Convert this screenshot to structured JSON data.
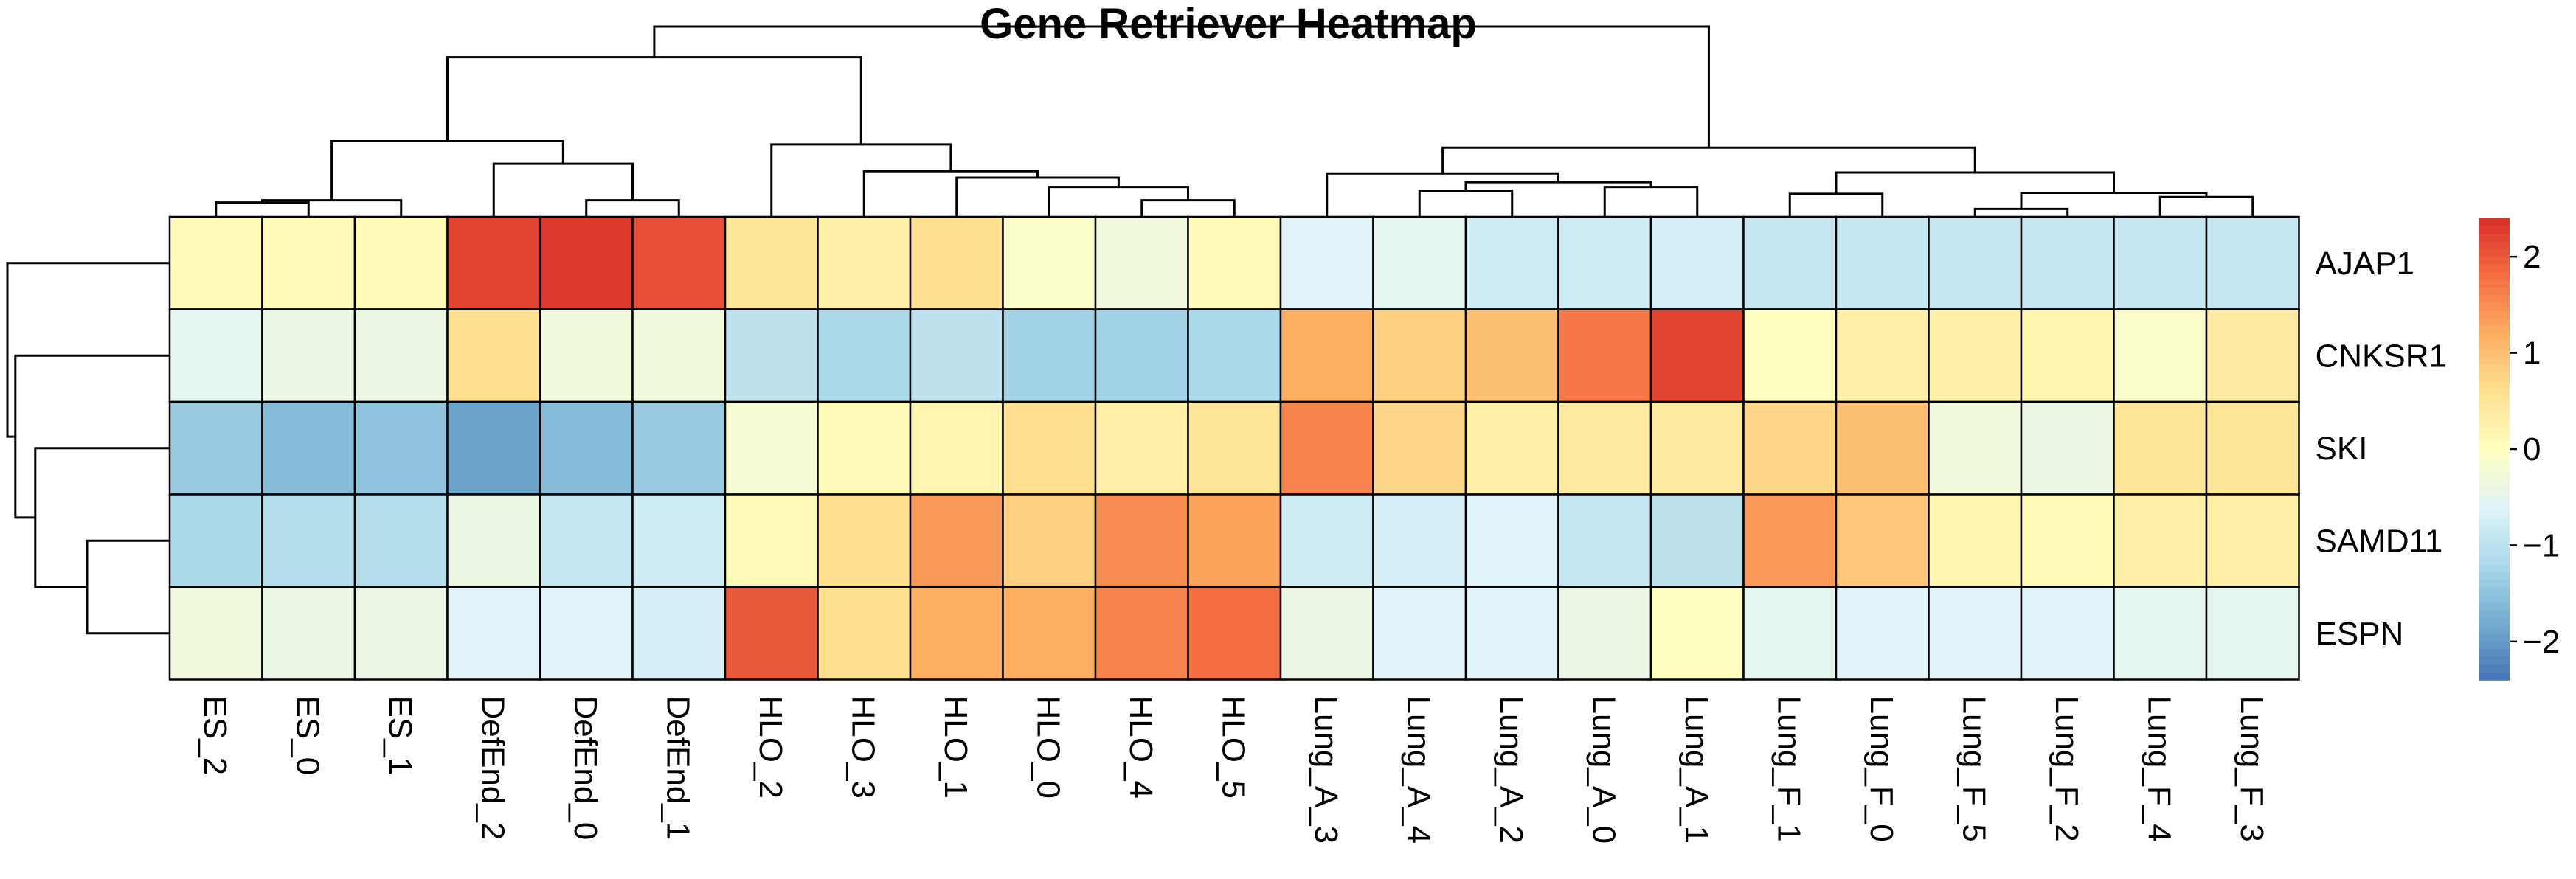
{
  "chart_data": {
    "type": "heatmap",
    "title": "Gene Retriever Heatmap",
    "rows": [
      "AJAP1",
      "CNKSR1",
      "SKI",
      "SAMD11",
      "ESPN"
    ],
    "columns": [
      "ES_2",
      "ES_0",
      "ES_1",
      "DefEnd_2",
      "DefEnd_0",
      "DefEnd_1",
      "HLO_2",
      "HLO_3",
      "HLO_1",
      "HLO_0",
      "HLO_4",
      "HLO_5",
      "Lung_A_3",
      "Lung_A_4",
      "Lung_A_2",
      "Lung_A_0",
      "Lung_A_1",
      "Lung_F_1",
      "Lung_F_0",
      "Lung_F_5",
      "Lung_F_2",
      "Lung_F_4",
      "Lung_F_3"
    ],
    "values": [
      [
        0.1,
        0.1,
        0.1,
        2.2,
        2.3,
        2.1,
        0.5,
        0.3,
        0.6,
        -0.1,
        -0.3,
        0.1,
        -0.6,
        -0.5,
        -0.8,
        -0.8,
        -0.7,
        -0.9,
        -0.9,
        -0.9,
        -0.9,
        -0.9,
        -0.9
      ],
      [
        -0.5,
        -0.4,
        -0.4,
        0.6,
        -0.3,
        -0.3,
        -1.0,
        -1.2,
        -1.0,
        -1.3,
        -1.3,
        -1.2,
        1.2,
        0.8,
        1.0,
        1.7,
        2.2,
        0.0,
        0.3,
        0.3,
        0.2,
        -0.1,
        0.4
      ],
      [
        -1.4,
        -1.6,
        -1.5,
        -1.9,
        -1.6,
        -1.4,
        -0.2,
        0.1,
        0.2,
        0.6,
        0.3,
        0.5,
        1.6,
        0.7,
        0.3,
        0.4,
        0.4,
        0.7,
        1.0,
        -0.3,
        -0.4,
        0.5,
        0.5
      ],
      [
        -1.2,
        -1.1,
        -1.1,
        -0.4,
        -0.9,
        -0.8,
        0.1,
        0.6,
        1.4,
        0.8,
        1.5,
        1.3,
        -0.8,
        -0.7,
        -0.6,
        -0.9,
        -1.0,
        1.4,
        0.9,
        0.2,
        0.1,
        0.3,
        0.3
      ],
      [
        -0.3,
        -0.4,
        -0.4,
        -0.6,
        -0.6,
        -0.7,
        2.0,
        0.6,
        1.2,
        1.2,
        1.6,
        1.8,
        -0.4,
        -0.6,
        -0.6,
        -0.4,
        0.0,
        -0.5,
        -0.6,
        -0.6,
        -0.6,
        -0.5,
        -0.5
      ]
    ],
    "color_scale": {
      "min": -2.4,
      "max": 2.4,
      "stops": [
        "#4575b4",
        "#74add1",
        "#abd9e9",
        "#e0f3f8",
        "#ffffbf",
        "#fee090",
        "#fdae61",
        "#f46d43",
        "#d73027"
      ]
    },
    "legend": {
      "ticks": [
        -2,
        -1,
        0,
        1,
        2
      ],
      "tick_labels": [
        "−2",
        "−1",
        "0",
        "1",
        "2"
      ]
    },
    "column_dendrogram": true,
    "row_dendrogram": true
  }
}
